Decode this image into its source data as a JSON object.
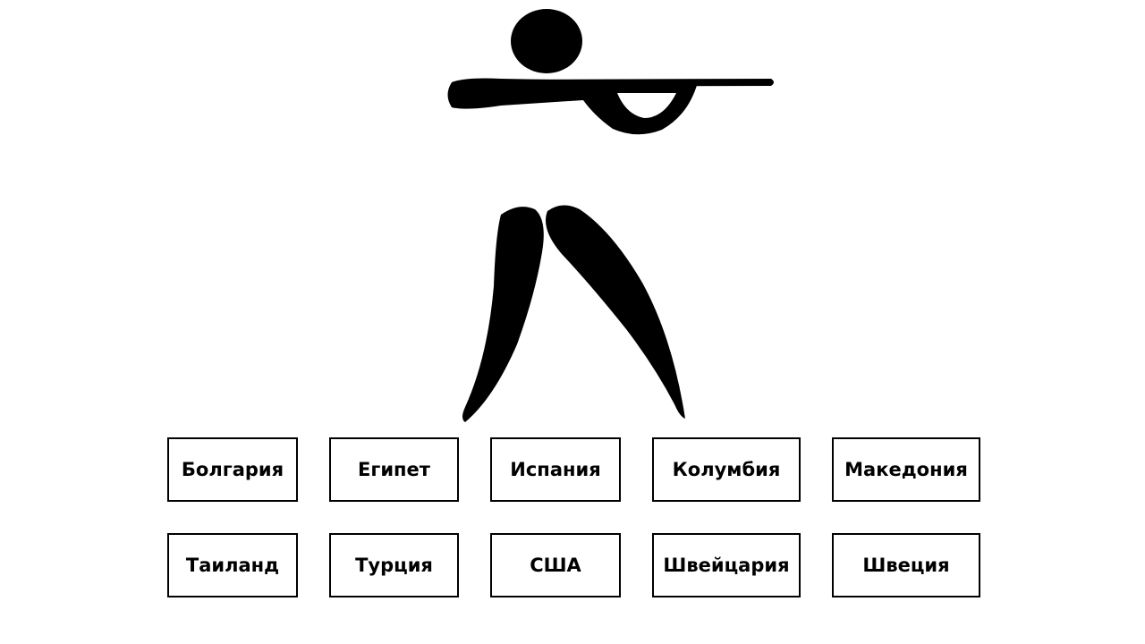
{
  "pictogram": {
    "icon": "rifle-shooter-icon",
    "color": "#000000"
  },
  "countries": [
    [
      "Болгария",
      "Египет",
      "Испания",
      "Колумбия",
      "Македония"
    ],
    [
      "Таиланд",
      "Турция",
      "США",
      "Швейцария",
      "Швеция"
    ]
  ]
}
